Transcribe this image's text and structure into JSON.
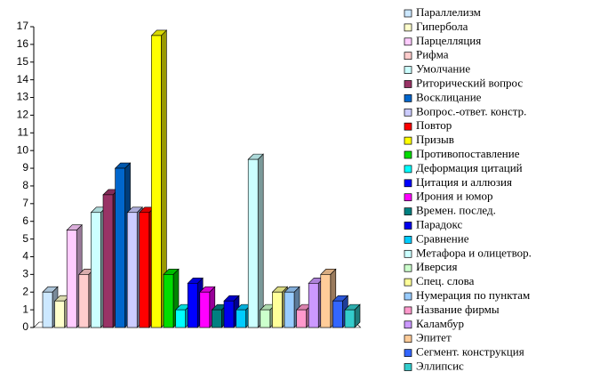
{
  "chart_data": {
    "type": "bar",
    "categories": [
      "Параллелизм",
      "Гипербола",
      "Парцелляция",
      "Рифма",
      "Умолчание",
      "Риторический вопрос",
      "Восклицание",
      "Вопрос.-ответ. констр.",
      "Повтор",
      "Призыв",
      "Противопоставление",
      "Деформация цитаций",
      "Цитация и аллюзия",
      "Ирония и юмор",
      "Времен. послед.",
      "Парадокс",
      "Сравнение",
      "Метафора и олицетвор.",
      "Иверсия",
      "Спец. слова",
      "Нумерация по пунктам",
      "Название фирмы",
      "Каламбур",
      "Эпитет",
      "Сегмент. конструкция",
      "Эллипсис"
    ],
    "values": [
      2,
      1.5,
      5.5,
      3,
      6.5,
      7.5,
      9,
      6.5,
      6.5,
      16.5,
      3,
      1,
      2.5,
      2,
      1,
      1.5,
      1,
      9.5,
      1,
      2,
      2,
      1,
      2.5,
      3,
      1.5,
      1
    ],
    "colors": [
      "#cce8ff",
      "#ffffcc",
      "#ffccff",
      "#ffcccc",
      "#ccffff",
      "#993366",
      "#0066cc",
      "#ccccff",
      "#ff0000",
      "#ffff00",
      "#00dd00",
      "#00ffff",
      "#0000ff",
      "#ff00ff",
      "#008080",
      "#0000ee",
      "#00ccff",
      "#ccffff",
      "#ccffcc",
      "#ffff99",
      "#99ccff",
      "#ff99cc",
      "#cc99ff",
      "#ffcc99",
      "#3366ff",
      "#33cccc"
    ],
    "ylim": [
      0,
      17
    ],
    "yticks": [
      0,
      1,
      2,
      3,
      4,
      5,
      6,
      7,
      8,
      9,
      10,
      11,
      12,
      13,
      14,
      15,
      16,
      17
    ]
  }
}
